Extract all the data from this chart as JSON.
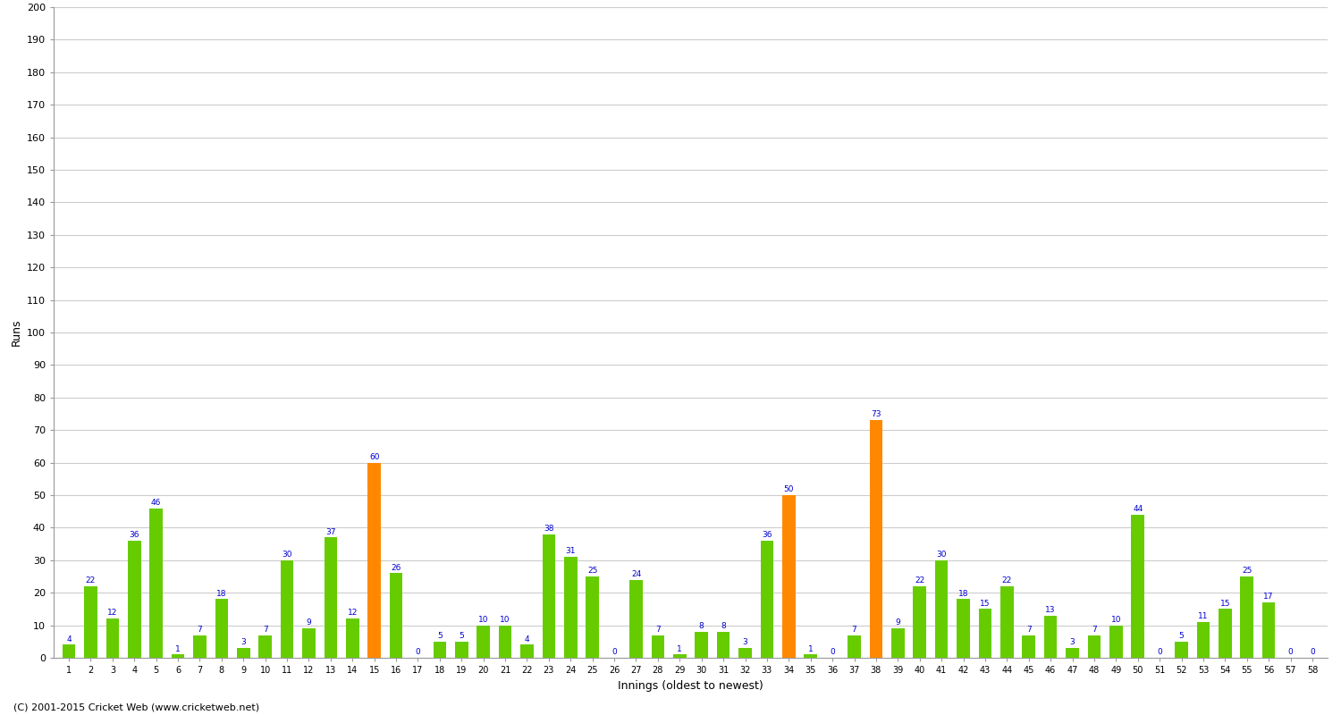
{
  "innings": [
    1,
    2,
    3,
    4,
    5,
    6,
    7,
    8,
    9,
    10,
    11,
    12,
    13,
    14,
    15,
    16,
    17,
    18,
    19,
    20,
    21,
    22,
    23,
    24,
    25,
    26,
    27,
    28,
    29,
    30,
    31,
    32,
    33,
    34,
    35,
    36,
    37,
    38,
    39,
    40,
    41,
    42,
    43,
    44,
    45,
    46,
    47,
    48,
    49,
    50,
    51,
    52,
    53,
    54,
    55,
    56,
    57,
    58
  ],
  "values": [
    4,
    22,
    12,
    36,
    46,
    1,
    7,
    18,
    3,
    7,
    30,
    9,
    37,
    12,
    60,
    26,
    0,
    5,
    5,
    10,
    10,
    4,
    38,
    31,
    25,
    0,
    24,
    7,
    1,
    8,
    8,
    3,
    36,
    50,
    1,
    0,
    7,
    73,
    9,
    22,
    30,
    18,
    15,
    22,
    7,
    13,
    3,
    7,
    10,
    44,
    0,
    5,
    11,
    15,
    25,
    17,
    0,
    0
  ],
  "colors": [
    "#66cc00",
    "#66cc00",
    "#66cc00",
    "#66cc00",
    "#66cc00",
    "#66cc00",
    "#66cc00",
    "#66cc00",
    "#66cc00",
    "#66cc00",
    "#66cc00",
    "#66cc00",
    "#66cc00",
    "#66cc00",
    "#ff8800",
    "#66cc00",
    "#66cc00",
    "#66cc00",
    "#66cc00",
    "#66cc00",
    "#66cc00",
    "#66cc00",
    "#66cc00",
    "#66cc00",
    "#66cc00",
    "#66cc00",
    "#66cc00",
    "#66cc00",
    "#66cc00",
    "#66cc00",
    "#66cc00",
    "#66cc00",
    "#66cc00",
    "#ff8800",
    "#66cc00",
    "#66cc00",
    "#66cc00",
    "#ff8800",
    "#66cc00",
    "#66cc00",
    "#66cc00",
    "#66cc00",
    "#66cc00",
    "#66cc00",
    "#66cc00",
    "#66cc00",
    "#66cc00",
    "#66cc00",
    "#66cc00",
    "#66cc00",
    "#66cc00",
    "#66cc00",
    "#66cc00",
    "#66cc00",
    "#66cc00",
    "#66cc00",
    "#66cc00",
    "#66cc00"
  ],
  "xlabel": "Innings (oldest to newest)",
  "ylabel": "Runs",
  "ylim": [
    0,
    200
  ],
  "yticks": [
    0,
    10,
    20,
    30,
    40,
    50,
    60,
    70,
    80,
    90,
    100,
    110,
    120,
    130,
    140,
    150,
    160,
    170,
    180,
    190,
    200
  ],
  "background_color": "#ffffff",
  "grid_color": "#cccccc",
  "label_color": "#0000cc",
  "footer": "(C) 2001-2015 Cricket Web (www.cricketweb.net)"
}
